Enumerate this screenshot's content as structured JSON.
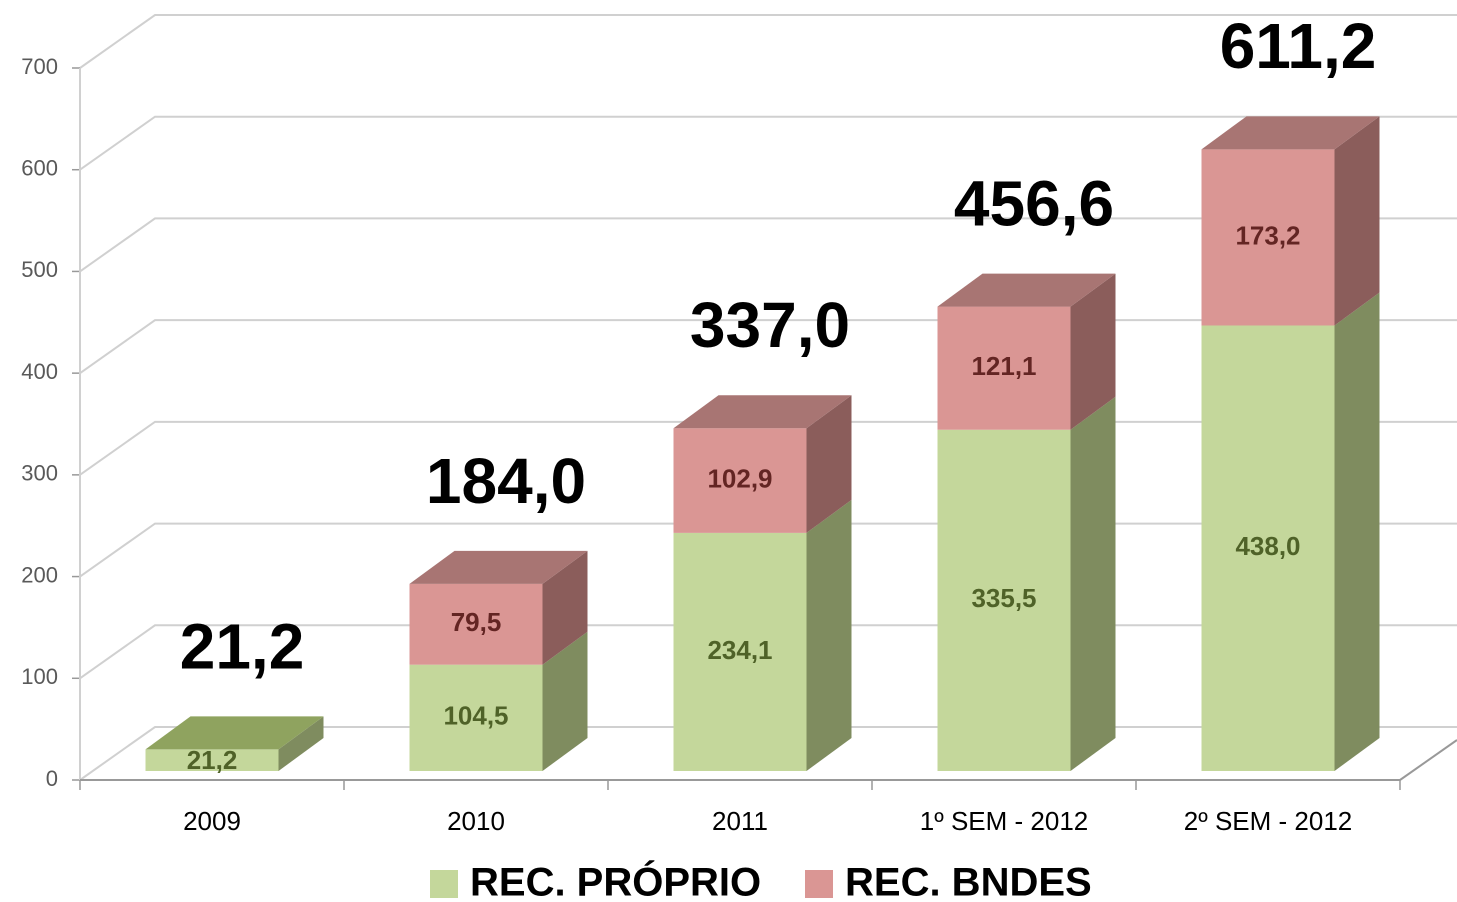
{
  "chart_data": {
    "type": "bar3d_stacked",
    "categories": [
      "2009",
      "2010",
      "2011",
      "1º SEM - 2012",
      "2º SEM - 2012"
    ],
    "series": [
      {
        "name": "REC. PRÓPRIO",
        "color": "#c4d79b",
        "values": [
          21.2,
          104.5,
          234.1,
          335.5,
          438.0
        ],
        "value_labels": [
          "21,2",
          "104,5",
          "234,1",
          "335,5",
          "438,0"
        ]
      },
      {
        "name": "REC. BNDES",
        "color": "#da9694",
        "values": [
          null,
          79.5,
          102.9,
          121.1,
          173.2
        ],
        "value_labels": [
          null,
          "79,5",
          "102,9",
          "121,1",
          "173,2"
        ]
      }
    ],
    "totals": [
      21.2,
      184.0,
      337.0,
      456.6,
      611.2
    ],
    "total_labels": [
      "21,2",
      "184,0",
      "337,0",
      "456,6",
      "611,2"
    ],
    "ylim": [
      0,
      700
    ],
    "yticks": [
      0,
      100,
      200,
      300,
      400,
      500,
      600,
      700
    ],
    "grid": true,
    "legend": "bottom"
  }
}
